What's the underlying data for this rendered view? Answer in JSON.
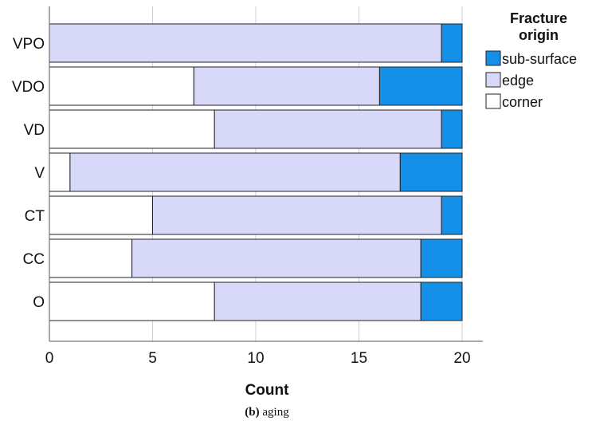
{
  "chart_data": {
    "type": "bar",
    "orientation": "horizontal",
    "stacked": true,
    "categories": [
      "VPO",
      "VDO",
      "VD",
      "V",
      "CT",
      "CC",
      "O"
    ],
    "series": [
      {
        "name": "corner",
        "values": [
          0,
          7,
          8,
          1,
          5,
          4,
          8
        ],
        "color": "#ffffff"
      },
      {
        "name": "edge",
        "values": [
          19,
          9,
          11,
          16,
          14,
          14,
          10
        ],
        "color": "#d8d8f8"
      },
      {
        "name": "sub-surface",
        "values": [
          1,
          4,
          1,
          3,
          1,
          2,
          2
        ],
        "color": "#1590e8"
      }
    ],
    "xlabel": "Count",
    "ylabel": "",
    "xlim": [
      0,
      21
    ],
    "xticks": [
      0,
      5,
      10,
      15,
      20
    ],
    "grid": true,
    "legend": {
      "title_lines": [
        "Fracture",
        "origin"
      ],
      "placement": "top-right",
      "order": [
        "sub-surface",
        "edge",
        "corner"
      ]
    }
  },
  "caption": {
    "label": "(b)",
    "text": " aging"
  }
}
